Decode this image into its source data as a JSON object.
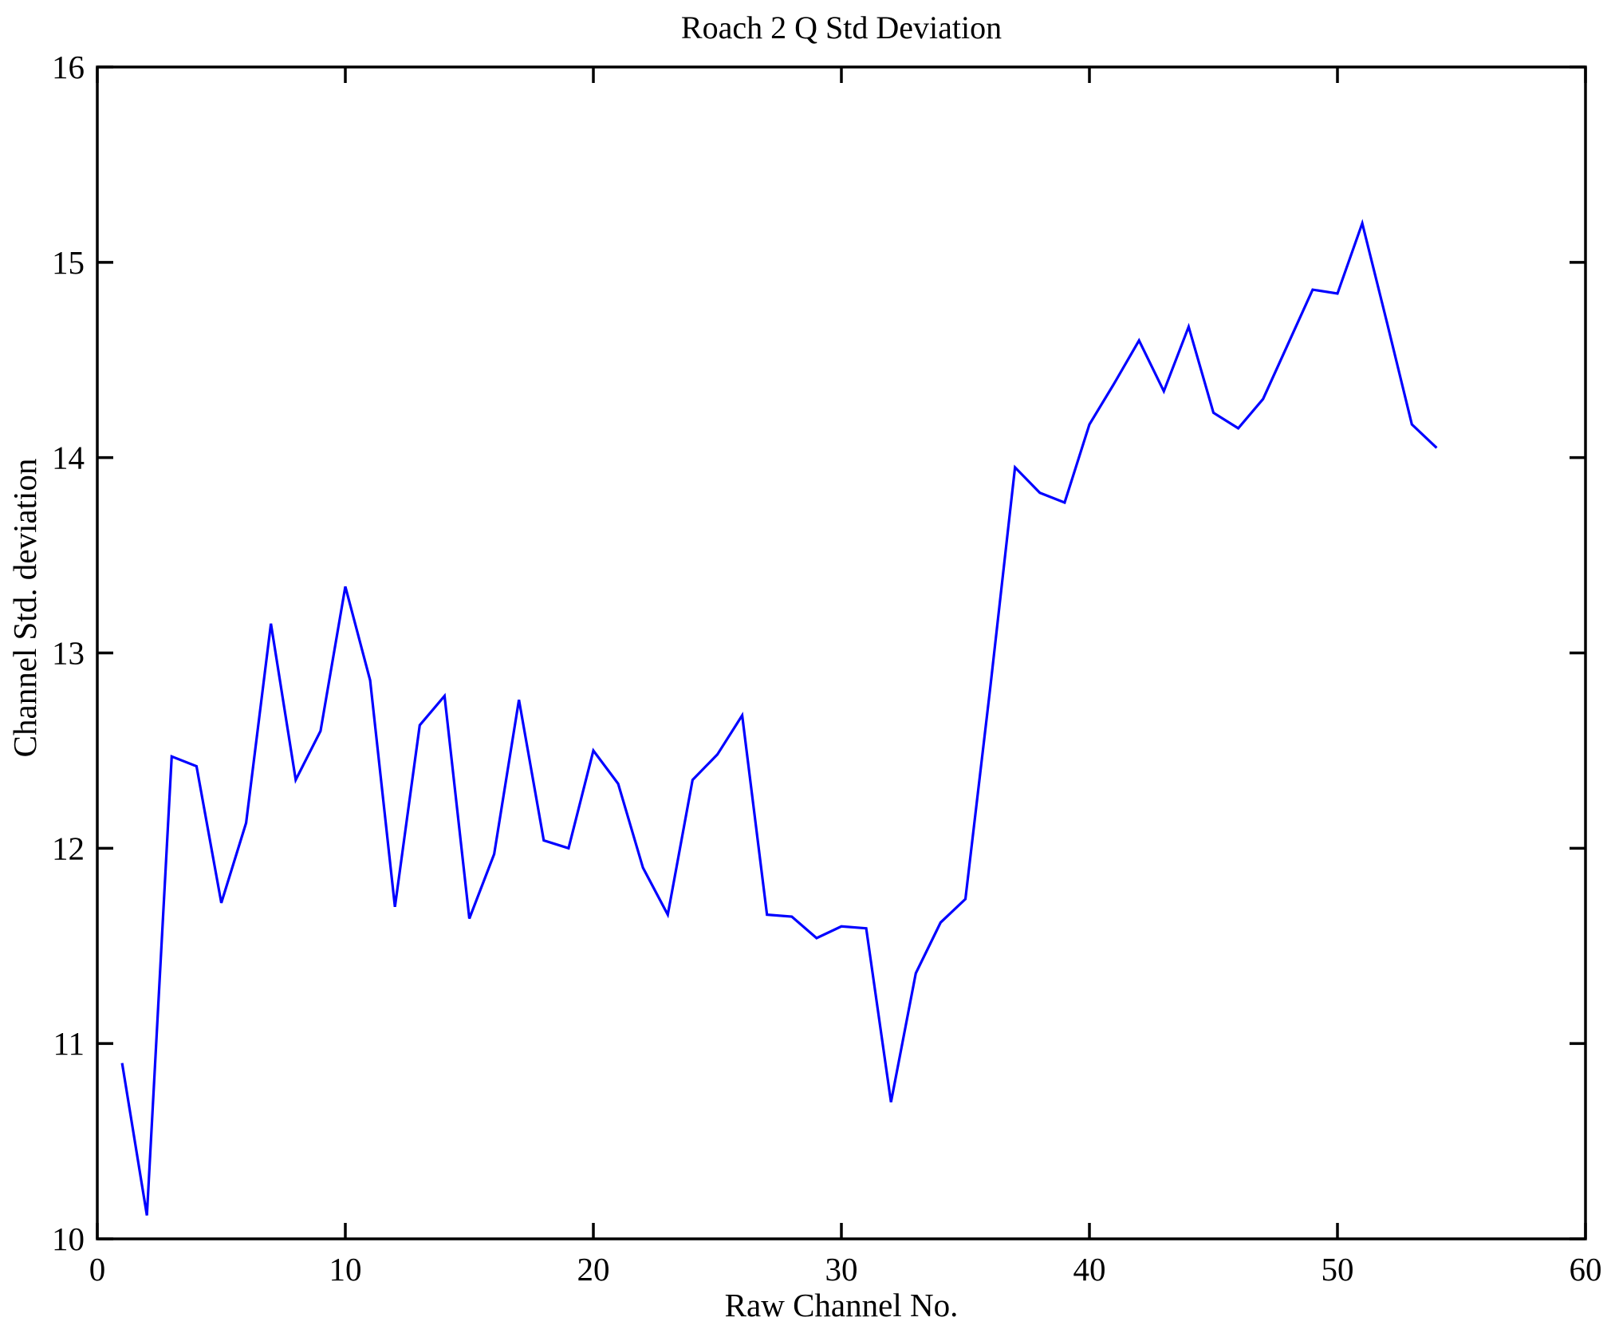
{
  "chart_data": {
    "type": "line",
    "title": "Roach 2 Q Std Deviation",
    "xlabel": "Raw Channel No.",
    "ylabel": "Channel Std. deviation",
    "xlim": [
      0,
      60
    ],
    "ylim": [
      10,
      16
    ],
    "xticks": [
      0,
      10,
      20,
      30,
      40,
      50,
      60
    ],
    "yticks": [
      10,
      11,
      12,
      13,
      14,
      15,
      16
    ],
    "grid": false,
    "legend": "none",
    "line_color": "#0000FF",
    "axis_color": "#000000",
    "background_color": "#FFFFFF",
    "x_start_channel": 1,
    "x": [
      1,
      2,
      3,
      4,
      5,
      6,
      7,
      8,
      9,
      10,
      11,
      12,
      13,
      14,
      15,
      16,
      17,
      18,
      19,
      20,
      21,
      22,
      23,
      24,
      25,
      26,
      27,
      28,
      29,
      30,
      31,
      32,
      33,
      34,
      35,
      36,
      37,
      38,
      39,
      40,
      41,
      42,
      43,
      44,
      45,
      46,
      47,
      48,
      49,
      50,
      51,
      52,
      53,
      54
    ],
    "values": [
      10.9,
      10.12,
      12.47,
      12.42,
      11.72,
      12.13,
      13.15,
      12.35,
      12.6,
      13.34,
      12.86,
      11.7,
      12.63,
      12.78,
      11.64,
      11.97,
      12.76,
      12.04,
      12.0,
      12.5,
      12.33,
      11.9,
      11.66,
      12.35,
      12.48,
      12.68,
      11.66,
      11.65,
      11.54,
      11.6,
      11.59,
      10.7,
      11.36,
      11.62,
      11.74,
      12.82,
      13.95,
      13.82,
      13.77,
      14.17,
      14.38,
      14.6,
      14.34,
      14.67,
      14.23,
      14.15,
      14.3,
      14.58,
      14.86,
      14.84,
      15.2,
      14.69,
      14.17,
      14.05
    ]
  }
}
